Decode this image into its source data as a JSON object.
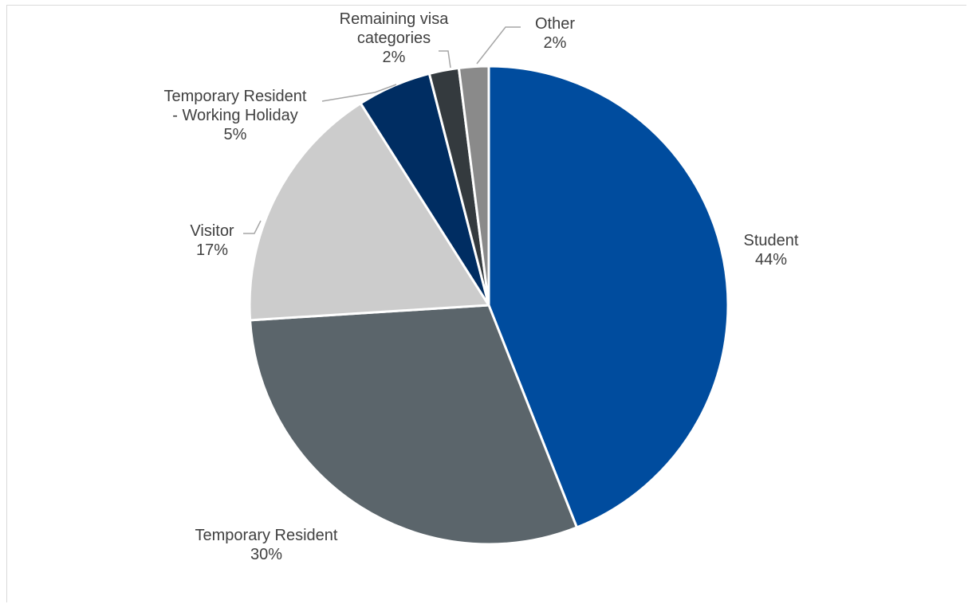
{
  "chart_data": {
    "type": "pie",
    "title": "",
    "slices": [
      {
        "label": "Student",
        "value": 44,
        "percent_label": "44%",
        "color": "#004c9e"
      },
      {
        "label": "Temporary Resident",
        "value": 30,
        "percent_label": "30%",
        "color": "#5b656b"
      },
      {
        "label": "Visitor",
        "value": 17,
        "percent_label": "17%",
        "color": "#cccccc"
      },
      {
        "label": "Temporary Resident - Working Holiday",
        "value": 5,
        "percent_label": "5%",
        "color": "#002d62"
      },
      {
        "label": "Remaining visa categories",
        "value": 2,
        "percent_label": "2%",
        "color": "#343a3e"
      },
      {
        "label": "Other",
        "value": 2,
        "percent_label": "2%",
        "color": "#8a8a8a"
      }
    ],
    "start_angle": "top (12 o'clock)",
    "direction": "clockwise",
    "legend": "none",
    "data_labels": [
      {
        "lines": [
          "Student",
          "44%"
        ]
      },
      {
        "lines": [
          "Temporary Resident",
          "30%"
        ]
      },
      {
        "lines": [
          "Visitor",
          "17%"
        ]
      },
      {
        "lines": [
          "Temporary Resident",
          "- Working Holiday",
          "5%"
        ]
      },
      {
        "lines": [
          "Remaining visa",
          "categories",
          "2%"
        ]
      },
      {
        "lines": [
          "Other",
          "2%"
        ]
      }
    ]
  }
}
